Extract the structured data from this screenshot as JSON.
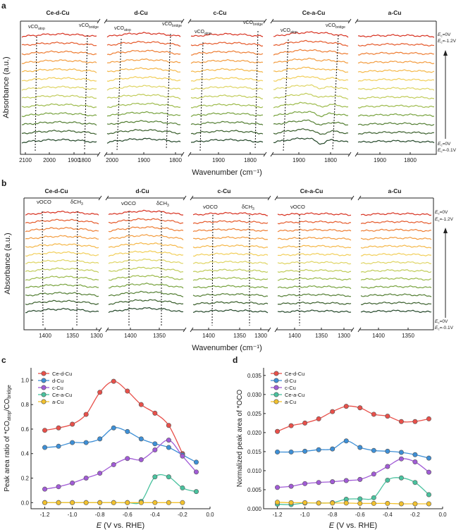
{
  "figure": {
    "panel_labels": [
      "a",
      "b",
      "c",
      "d"
    ]
  },
  "ir_panels": {
    "samples": [
      "Ce-d-Cu",
      "d-Cu",
      "c-Cu",
      "Ce-a-Cu",
      "a-Cu"
    ],
    "ylabel": "Absorbance (a.u.)",
    "xlabel": "Wavenumber (cm⁻¹)",
    "potential_top": [
      "E",
      "c",
      "=0V",
      "E",
      "c",
      "=-1.2V"
    ],
    "potential_bottom": [
      "E",
      "c",
      "=0V",
      "E",
      "c",
      "=-0.1V"
    ],
    "trace_colors": [
      "#d7301f",
      "#e55a2b",
      "#ee7e34",
      "#f39c3f",
      "#f5b84a",
      "#f2cf5a",
      "#dfd565",
      "#c1cc5a",
      "#9dbb4c",
      "#78a33f",
      "#547f34",
      "#3a5f2c",
      "#25482a"
    ],
    "panel_a": {
      "xticks": [
        "2100",
        "2000",
        "1900",
        "1800"
      ],
      "annotations": [
        {
          "base": "νCO",
          "sub": "atop"
        },
        {
          "base": "νCO",
          "sub": "bridge"
        }
      ]
    },
    "panel_b": {
      "xticks": [
        "1400",
        "1350",
        "1300"
      ],
      "annotations": [
        {
          "base": "νOCO",
          "sub": ""
        },
        {
          "base": "δCH",
          "sub": "3"
        }
      ]
    }
  },
  "panel_c": {
    "chart_data": {
      "type": "line",
      "ylabel_parts": [
        "Peak area ratio of *CO",
        "atop",
        "/CO",
        "bridge"
      ],
      "xlabel_parts": [
        "E",
        " (V vs. RHE)"
      ],
      "xlim": [
        -1.3,
        0.0
      ],
      "ylim": [
        -0.05,
        1.1
      ],
      "xticks": [
        -1.2,
        -1.0,
        -0.8,
        -0.6,
        -0.4,
        -0.2,
        0.0
      ],
      "yticks": [
        0.0,
        0.2,
        0.4,
        0.6,
        0.8,
        1.0
      ],
      "x": [
        -1.2,
        -1.1,
        -1.0,
        -0.9,
        -0.8,
        -0.7,
        -0.6,
        -0.5,
        -0.4,
        -0.3,
        -0.2,
        -0.1
      ],
      "legend_position": "top-left",
      "series": [
        {
          "name": "Ce-d-Cu",
          "color": "#e8504a",
          "values": [
            0.59,
            0.61,
            0.64,
            0.72,
            0.9,
            0.99,
            0.91,
            0.8,
            0.73,
            0.63,
            0.4,
            null
          ]
        },
        {
          "name": "d-Cu",
          "color": "#3d8fd6",
          "values": [
            0.45,
            0.46,
            0.49,
            0.49,
            0.52,
            0.61,
            0.58,
            0.52,
            0.48,
            0.45,
            0.39,
            0.33
          ]
        },
        {
          "name": "c-Cu",
          "color": "#a15bd6",
          "values": [
            0.11,
            0.13,
            0.16,
            0.2,
            0.24,
            0.31,
            0.36,
            0.35,
            0.43,
            0.51,
            0.38,
            0.25
          ]
        },
        {
          "name": "Ce-a-Cu",
          "color": "#49c29e",
          "values": [
            0.0,
            0.0,
            0.0,
            0.0,
            0.0,
            0.0,
            0.0,
            0.01,
            0.21,
            0.21,
            0.12,
            0.09
          ]
        },
        {
          "name": "a-Cu",
          "color": "#f2c12e",
          "values": [
            0.0,
            0.0,
            0.0,
            0.0,
            0.0,
            0.0,
            0.0,
            0.0,
            0.0,
            0.0,
            0.0,
            null
          ]
        }
      ]
    }
  },
  "panel_d": {
    "chart_data": {
      "type": "line",
      "ylabel": "Normalized peak area of *OCO",
      "xlabel_parts": [
        "E",
        " (V vs. RHE)"
      ],
      "xlim": [
        -1.3,
        0.0
      ],
      "ylim": [
        0.0,
        0.037
      ],
      "xticks": [
        -1.2,
        -1.0,
        -0.8,
        -0.6,
        -0.4,
        -0.2,
        0.0
      ],
      "yticks": [
        0.0,
        0.005,
        0.01,
        0.015,
        0.02,
        0.025,
        0.03,
        0.035
      ],
      "x": [
        -1.2,
        -1.1,
        -1.0,
        -0.9,
        -0.8,
        -0.7,
        -0.6,
        -0.5,
        -0.4,
        -0.3,
        -0.2,
        -0.1
      ],
      "legend_position": "top-left",
      "series": [
        {
          "name": "Ce-d-Cu",
          "color": "#e8504a",
          "values": [
            0.0203,
            0.0218,
            0.0225,
            0.0236,
            0.0255,
            0.0269,
            0.0265,
            0.0248,
            0.0243,
            0.0229,
            0.0229,
            0.0236
          ]
        },
        {
          "name": "d-Cu",
          "color": "#3d8fd6",
          "values": [
            0.0149,
            0.0149,
            0.0151,
            0.0155,
            0.0157,
            0.0178,
            0.0161,
            0.0153,
            0.0151,
            0.0148,
            0.0142,
            0.0133
          ]
        },
        {
          "name": "c-Cu",
          "color": "#a15bd6",
          "values": [
            0.0056,
            0.0059,
            0.0066,
            0.0069,
            0.0071,
            0.0074,
            0.0077,
            0.0091,
            0.0111,
            0.0131,
            0.0123,
            0.0096
          ]
        },
        {
          "name": "Ce-a-Cu",
          "color": "#49c29e",
          "values": [
            0.0012,
            0.0011,
            0.0015,
            0.0015,
            0.0016,
            0.0025,
            0.0026,
            0.0029,
            0.0075,
            0.0081,
            0.0069,
            0.0037
          ]
        },
        {
          "name": "a-Cu",
          "color": "#f2c12e",
          "values": [
            0.0017,
            0.0016,
            0.0016,
            0.0015,
            0.0015,
            0.0015,
            0.0014,
            0.0014,
            0.0014,
            0.0013,
            0.0013,
            0.0013
          ]
        }
      ]
    }
  }
}
